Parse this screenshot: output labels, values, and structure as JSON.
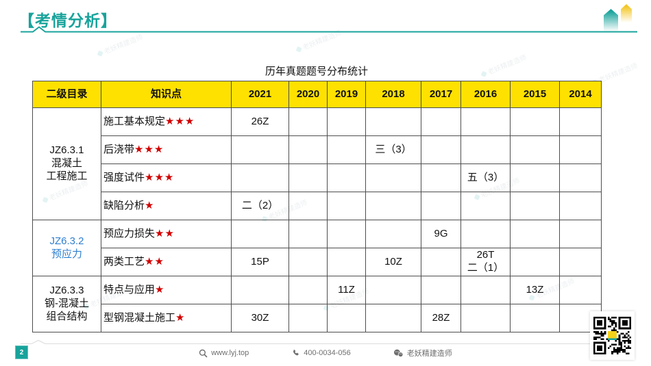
{
  "header": {
    "title": "【考情分析】"
  },
  "slide": {
    "table_title": "历年真题题号分布统计"
  },
  "table": {
    "col_headers": [
      "二级目录",
      "知识点",
      "2021",
      "2020",
      "2019",
      "2018",
      "2017",
      "2016",
      "2015",
      "2014"
    ],
    "years": [
      "2021",
      "2020",
      "2019",
      "2018",
      "2017",
      "2016",
      "2015",
      "2014"
    ],
    "groups": [
      {
        "name": "JZ6.3.1\n混凝土\n工程施工",
        "color": "#111111",
        "rows": [
          {
            "topic": "施工基本规定",
            "stars": "★★★",
            "cells": {
              "2021": "26Z"
            }
          },
          {
            "topic": "后浇带",
            "stars": "★★★",
            "cells": {
              "2018": "三（3）"
            }
          },
          {
            "topic": "强度试件",
            "stars": "★★★",
            "cells": {
              "2016": "五（3）"
            }
          },
          {
            "topic": "缺陷分析",
            "stars": "★",
            "cells": {
              "2021": "二（2）"
            }
          }
        ]
      },
      {
        "name": "JZ6.3.2\n预应力",
        "color": "#2e7fd0",
        "rows": [
          {
            "topic": "预应力损失",
            "stars": "★★",
            "cells": {
              "2017": "9G"
            }
          },
          {
            "topic": "两类工艺",
            "stars": "★★",
            "cells": {
              "2021": "15P",
              "2018": "10Z",
              "2016": "26T\n二（1）"
            }
          }
        ]
      },
      {
        "name": "JZ6.3.3\n钢-混凝土\n组合结构",
        "color": "#111111",
        "rows": [
          {
            "topic": "特点与应用",
            "stars": "★",
            "cells": {
              "2019": "11Z",
              "2015": "13Z"
            }
          },
          {
            "topic": "型钢混凝土施工",
            "stars": "★",
            "cells": {
              "2021": "30Z",
              "2017": "28Z"
            }
          }
        ]
      }
    ]
  },
  "footer": {
    "page_number": "2",
    "website": "www.lyj.top",
    "phone": "400-0034-056",
    "wechat": "老妖精建造师"
  },
  "decor": {
    "watermark_text": "老妖精建造师"
  },
  "colors": {
    "teal": "#18a39b",
    "header_yellow": "#ffe100",
    "group_blue": "#2e7fd0",
    "star_red": "#d00000"
  }
}
